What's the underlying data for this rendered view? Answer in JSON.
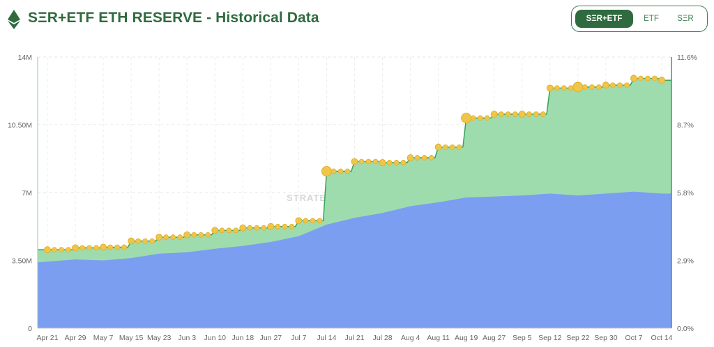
{
  "header": {
    "title": "SΞR+ETF ETH RESERVE - Historical Data",
    "logo_icon": "ethereum-diamond-icon",
    "tabs": [
      {
        "label": "SΞR+ETF",
        "active": true
      },
      {
        "label": "ETF",
        "active": false
      },
      {
        "label": "SΞR",
        "active": false
      }
    ]
  },
  "colors": {
    "accent": "#2f6b3e",
    "etf_area": "#7b9ef0",
    "ser_area": "#9edcae",
    "ser_line": "#35a35a",
    "marker": "#f0c64a"
  },
  "chart_data": {
    "type": "area",
    "watermark": "STRATEGICETHRESERVE.XYZ",
    "x_labels": [
      "Apr 21",
      "Apr 29",
      "May 7",
      "May 15",
      "May 23",
      "Jun 3",
      "Jun 10",
      "Jun 18",
      "Jun 27",
      "Jul 7",
      "Jul 14",
      "Jul 21",
      "Jul 28",
      "Aug 4",
      "Aug 11",
      "Aug 19",
      "Aug 27",
      "Sep 5",
      "Sep 12",
      "Sep 22",
      "Sep 30",
      "Oct 7",
      "Oct 14"
    ],
    "y_left": {
      "min": 0,
      "max": 14000000,
      "ticks": [
        "0",
        "3.50M",
        "7M",
        "10.50M",
        "14M"
      ]
    },
    "y_right": {
      "min": 0,
      "max": 11.6,
      "unit": "%",
      "ticks": [
        "0.0%",
        "2.9%",
        "5.8%",
        "8.7%",
        "11.6%"
      ]
    },
    "grid": true,
    "series": [
      {
        "kind": "etf_holdings",
        "x": [
          0,
          1,
          2,
          3,
          4,
          5,
          6,
          7,
          8,
          9,
          10,
          11,
          12,
          13,
          14,
          15,
          16,
          17,
          18,
          19,
          20,
          21,
          22
        ],
        "values": [
          3.4,
          3.55,
          3.5,
          3.62,
          3.85,
          3.92,
          4.1,
          4.25,
          4.45,
          4.75,
          5.35,
          5.7,
          5.95,
          6.3,
          6.5,
          6.75,
          6.8,
          6.85,
          6.95,
          6.85,
          6.95,
          7.05,
          6.95
        ],
        "unit": "M"
      },
      {
        "kind": "total_ser_plus_etf",
        "x": [
          0,
          1,
          2,
          3,
          4,
          5,
          6,
          7,
          8,
          9,
          10,
          11,
          12,
          13,
          14,
          15,
          16,
          17,
          18,
          19,
          20,
          21,
          22
        ],
        "values": [
          4.05,
          4.15,
          4.18,
          4.5,
          4.7,
          4.82,
          5.05,
          5.18,
          5.25,
          5.55,
          8.1,
          8.6,
          8.55,
          8.8,
          9.35,
          10.85,
          11.05,
          11.05,
          12.4,
          12.45,
          12.55,
          12.9,
          12.8
        ],
        "unit": "M"
      }
    ]
  }
}
